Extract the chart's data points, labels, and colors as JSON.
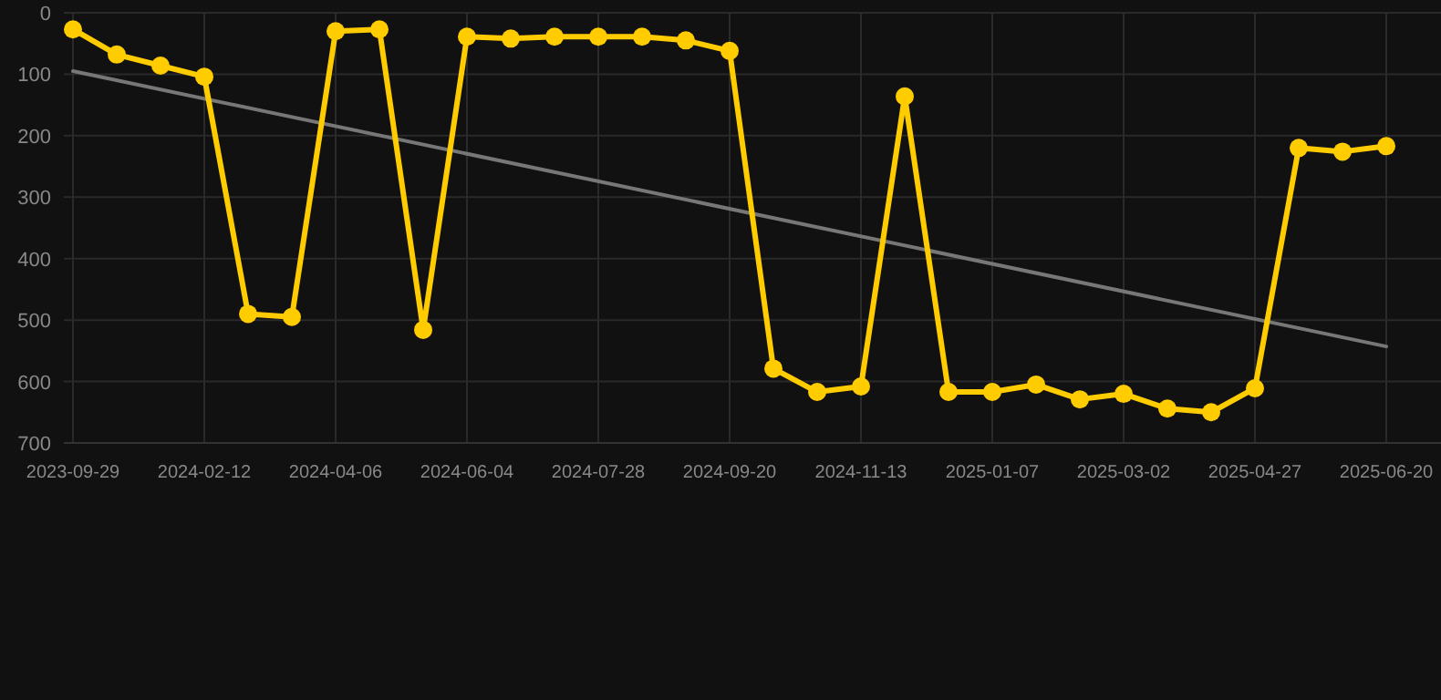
{
  "chart_data": {
    "type": "line",
    "categories": [
      "2023-09-29",
      null,
      null,
      "2024-02-12",
      null,
      null,
      "2024-04-06",
      null,
      null,
      "2024-06-04",
      null,
      null,
      "2024-07-28",
      null,
      null,
      "2024-09-20",
      null,
      null,
      "2024-11-13",
      null,
      null,
      "2025-01-07",
      null,
      null,
      "2025-03-02",
      null,
      null,
      "2025-04-27",
      null,
      null,
      "2025-06-20"
    ],
    "series": [
      {
        "color": "#ffcc00",
        "marker": "circle",
        "values": [
          27,
          68,
          86,
          104,
          490,
          495,
          30,
          27,
          516,
          39,
          42,
          39,
          39,
          39,
          45,
          62,
          579,
          617,
          608,
          136,
          617,
          617,
          605,
          629,
          620,
          644,
          650,
          611,
          220,
          226,
          217
        ]
      },
      {
        "color": "#777777",
        "marker": "none",
        "values": [
          95,
          null,
          null,
          null,
          null,
          null,
          null,
          null,
          null,
          null,
          null,
          null,
          null,
          null,
          null,
          null,
          null,
          null,
          null,
          null,
          null,
          null,
          null,
          null,
          null,
          null,
          null,
          null,
          null,
          null,
          543
        ]
      }
    ],
    "ylim": [
      700,
      0
    ],
    "yticks": [
      0,
      100,
      200,
      300,
      400,
      500,
      600,
      700
    ],
    "grid": true,
    "line_style": "solid"
  }
}
